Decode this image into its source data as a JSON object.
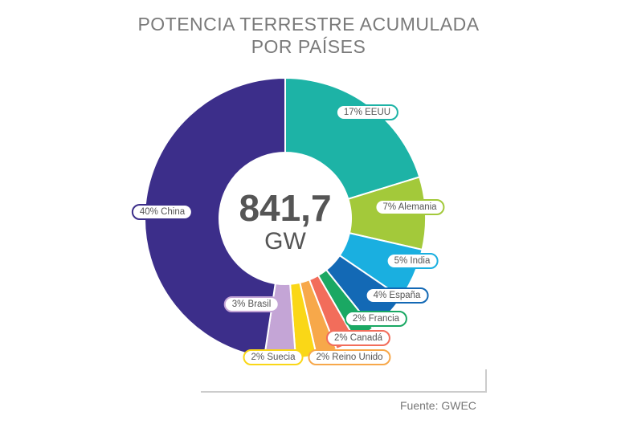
{
  "chart_data": {
    "type": "pie",
    "title": "POTENCIA TERRESTRE ACUMULADA POR PAÍSES",
    "title_lines": [
      "POTENCIA TERRESTRE ACUMULADA",
      "POR PAÍSES"
    ],
    "center_value": "841,7",
    "center_unit": "GW",
    "source": "Fuente: GWEC",
    "donut": true,
    "slices": [
      {
        "name": "EEUU",
        "value": 17,
        "label": "17% EEUU",
        "color": "#1db3a6"
      },
      {
        "name": "Alemania",
        "value": 7,
        "label": "7% Alemania",
        "color": "#a3c93a"
      },
      {
        "name": "India",
        "value": 5,
        "label": "5% India",
        "color": "#1aafe0"
      },
      {
        "name": "España",
        "value": 4,
        "label": "4% España",
        "color": "#1369b5"
      },
      {
        "name": "Francia",
        "value": 2,
        "label": "2% Francia",
        "color": "#1aa863"
      },
      {
        "name": "Canadá",
        "value": 2,
        "label": "2% Canadá",
        "color": "#f26d5b"
      },
      {
        "name": "Reino Unido",
        "value": 2,
        "label": "2% Reino Unido",
        "color": "#f7a84a"
      },
      {
        "name": "Suecia",
        "value": 2,
        "label": "2% Suecia",
        "color": "#fad717"
      },
      {
        "name": "Brasil",
        "value": 3,
        "label": "3% Brasil",
        "color": "#c4a5d6"
      },
      {
        "name": "China",
        "value": 40,
        "label": "40% China",
        "color": "#3c2e8a"
      }
    ]
  }
}
